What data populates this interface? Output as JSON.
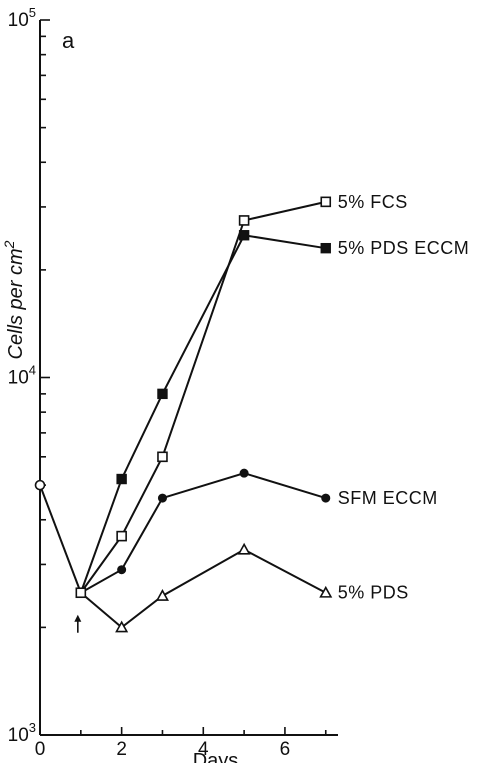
{
  "chart_data": {
    "type": "line",
    "panel_label": "a",
    "xlabel": "Days",
    "ylabel": {
      "base": "Cells per cm",
      "superscript": "2"
    },
    "x_scale": "linear",
    "y_scale": "log",
    "xlim": [
      0,
      7.3
    ],
    "ylim": [
      1000,
      100000
    ],
    "x_ticks": [
      0,
      2,
      4,
      6
    ],
    "y_ticks": [
      {
        "value": 1000,
        "base": "10",
        "exp": "3"
      },
      {
        "value": 10000,
        "base": "10",
        "exp": "4"
      },
      {
        "value": 100000,
        "base": "10",
        "exp": "5"
      }
    ],
    "arrow_at_day": 1,
    "initial_point": {
      "x": 0,
      "y": 5000
    },
    "series": [
      {
        "name": "5% FCS",
        "marker": "square-open",
        "points": [
          [
            1,
            2500
          ],
          [
            2,
            3600
          ],
          [
            3,
            6000
          ],
          [
            5,
            27500
          ],
          [
            7,
            31000
          ]
        ]
      },
      {
        "name": "5% PDS ECCM",
        "marker": "square-filled",
        "points": [
          [
            1,
            2500
          ],
          [
            2,
            5200
          ],
          [
            3,
            9000
          ],
          [
            5,
            25000
          ],
          [
            7,
            23000
          ]
        ]
      },
      {
        "name": "SFM ECCM",
        "marker": "circle-filled",
        "points": [
          [
            1,
            2500
          ],
          [
            2,
            2900
          ],
          [
            3,
            4600
          ],
          [
            5,
            5400
          ],
          [
            7,
            4600
          ]
        ]
      },
      {
        "name": "5% PDS",
        "marker": "triangle-open",
        "points": [
          [
            1,
            2500
          ],
          [
            2,
            2000
          ],
          [
            3,
            2450
          ],
          [
            5,
            3300
          ],
          [
            7,
            2500
          ]
        ]
      }
    ]
  }
}
